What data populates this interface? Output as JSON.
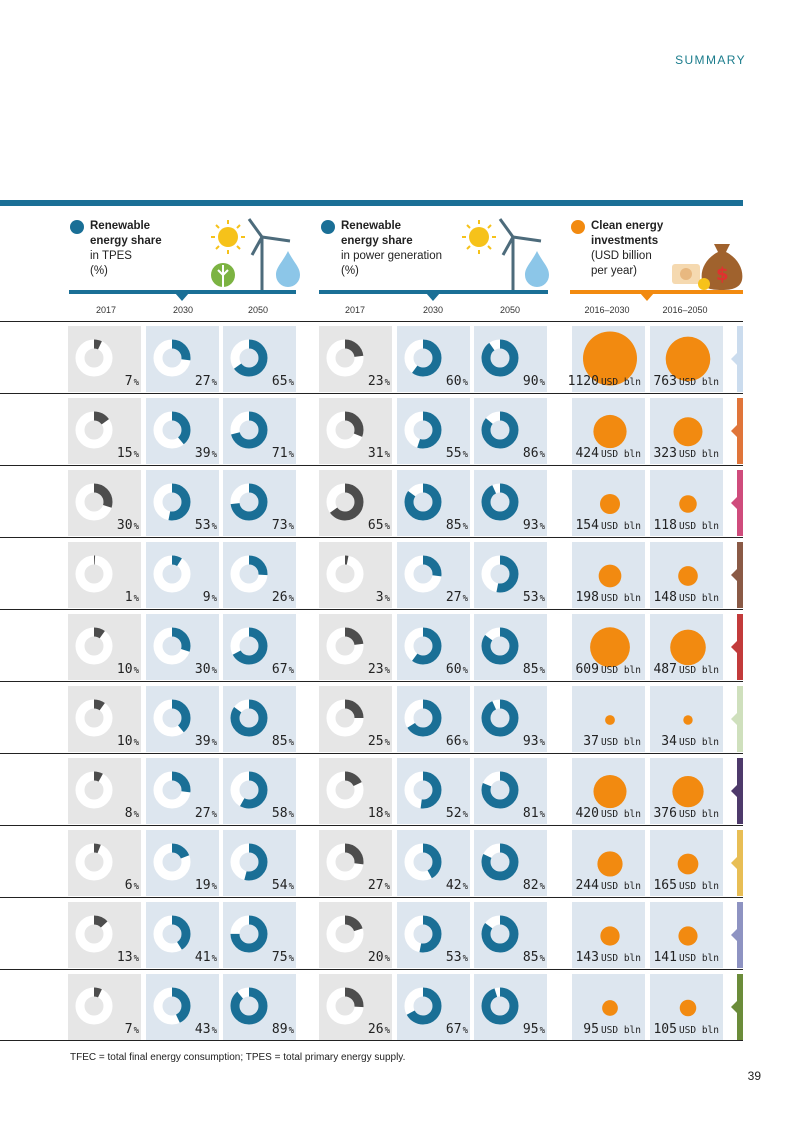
{
  "page": {
    "section": "SUMMARY",
    "page_number": "39",
    "footnote": "TFEC = total final energy consumption; TPES = total primary energy supply."
  },
  "colors": {
    "teal": "#1a6f96",
    "dark_grey": "#4d4d4d",
    "orange": "#f28a10"
  },
  "headers": [
    {
      "title": "Renewable",
      "title2": "energy share",
      "sub1": "in TPES",
      "sub2": "(%)",
      "dot_color": "#1a6f96",
      "years": [
        "2017",
        "2030",
        "2050"
      ]
    },
    {
      "title": "Renewable",
      "title2": "energy share",
      "sub1": "in power generation",
      "sub2": "(%)",
      "dot_color": "#1a6f96",
      "years": [
        "2017",
        "2030",
        "2050"
      ]
    },
    {
      "title": "Clean energy",
      "title2": "investments",
      "sub1": "(USD billion",
      "sub2": "per year)",
      "dot_color": "#f28a10",
      "years": [
        "2016–2030",
        "2016–2050"
      ]
    }
  ],
  "chart_data": {
    "type": "table",
    "unit_label": "USD bln",
    "row_colors": [
      "#cbdcee",
      "#e0753a",
      "#cf4c7c",
      "#8a5a46",
      "#c23b3b",
      "#cfe0bd",
      "#4e3a6b",
      "#e8be55",
      "#8e93c2",
      "#6b8c3a"
    ],
    "rows": [
      {
        "tpes": [
          7,
          27,
          65
        ],
        "power": [
          23,
          60,
          90
        ],
        "invest": [
          "1120",
          "763"
        ]
      },
      {
        "tpes": [
          15,
          39,
          71
        ],
        "power": [
          31,
          55,
          86
        ],
        "invest": [
          "424",
          "323"
        ]
      },
      {
        "tpes": [
          30,
          53,
          73
        ],
        "power": [
          65,
          85,
          93
        ],
        "invest": [
          "154",
          "118"
        ]
      },
      {
        "tpes": [
          1,
          9,
          26
        ],
        "power": [
          3,
          27,
          53
        ],
        "invest": [
          "198",
          "148"
        ]
      },
      {
        "tpes": [
          10,
          30,
          67
        ],
        "power": [
          23,
          60,
          85
        ],
        "invest": [
          "609",
          "487"
        ]
      },
      {
        "tpes": [
          10,
          39,
          85
        ],
        "power": [
          25,
          66,
          93
        ],
        "invest": [
          "37",
          "34"
        ]
      },
      {
        "tpes": [
          8,
          27,
          58
        ],
        "power": [
          18,
          52,
          81
        ],
        "invest": [
          "420",
          "376"
        ]
      },
      {
        "tpes": [
          6,
          19,
          54
        ],
        "power": [
          27,
          42,
          82
        ],
        "invest": [
          "244",
          "165"
        ]
      },
      {
        "tpes": [
          13,
          41,
          75
        ],
        "power": [
          20,
          53,
          85
        ],
        "invest": [
          "143",
          "141"
        ]
      },
      {
        "tpes": [
          7,
          43,
          89
        ],
        "power": [
          26,
          67,
          95
        ],
        "invest": [
          "95",
          "105"
        ]
      }
    ]
  }
}
